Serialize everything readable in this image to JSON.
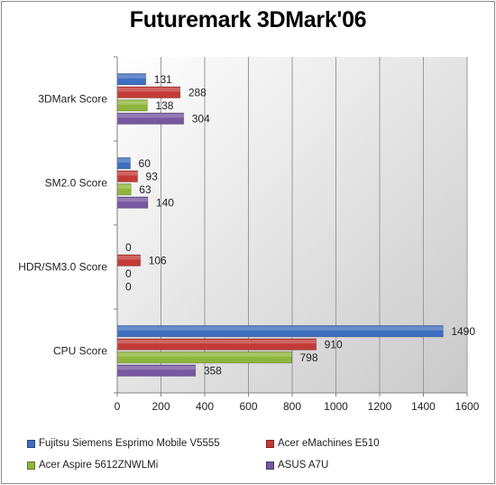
{
  "chart_data": {
    "type": "bar",
    "orientation": "horizontal",
    "title": "Futuremark 3DMark'06",
    "categories": [
      "3DMark Score",
      "SM2.0 Score",
      "HDR/SM3.0 Score",
      "CPU Score"
    ],
    "series": [
      {
        "name": "Fujitsu Siemens Esprimo Mobile V5555",
        "color": "#3f6fbf",
        "values": [
          131,
          60,
          0,
          1490
        ]
      },
      {
        "name": "Acer eMachines E510",
        "color": "#c33a37",
        "values": [
          288,
          93,
          106,
          910
        ]
      },
      {
        "name": "Acer Aspire 5612ZNWLMi",
        "color": "#8fb63c",
        "values": [
          138,
          63,
          0,
          798
        ]
      },
      {
        "name": "ASUS A7U",
        "color": "#7657a0",
        "values": [
          304,
          140,
          0,
          358
        ]
      }
    ],
    "xlim": [
      0,
      1600
    ],
    "x_ticks": [
      "0",
      "200",
      "400",
      "600",
      "800",
      "1000",
      "1200",
      "1400",
      "1600"
    ],
    "grid": true,
    "legend_position": "bottom"
  }
}
